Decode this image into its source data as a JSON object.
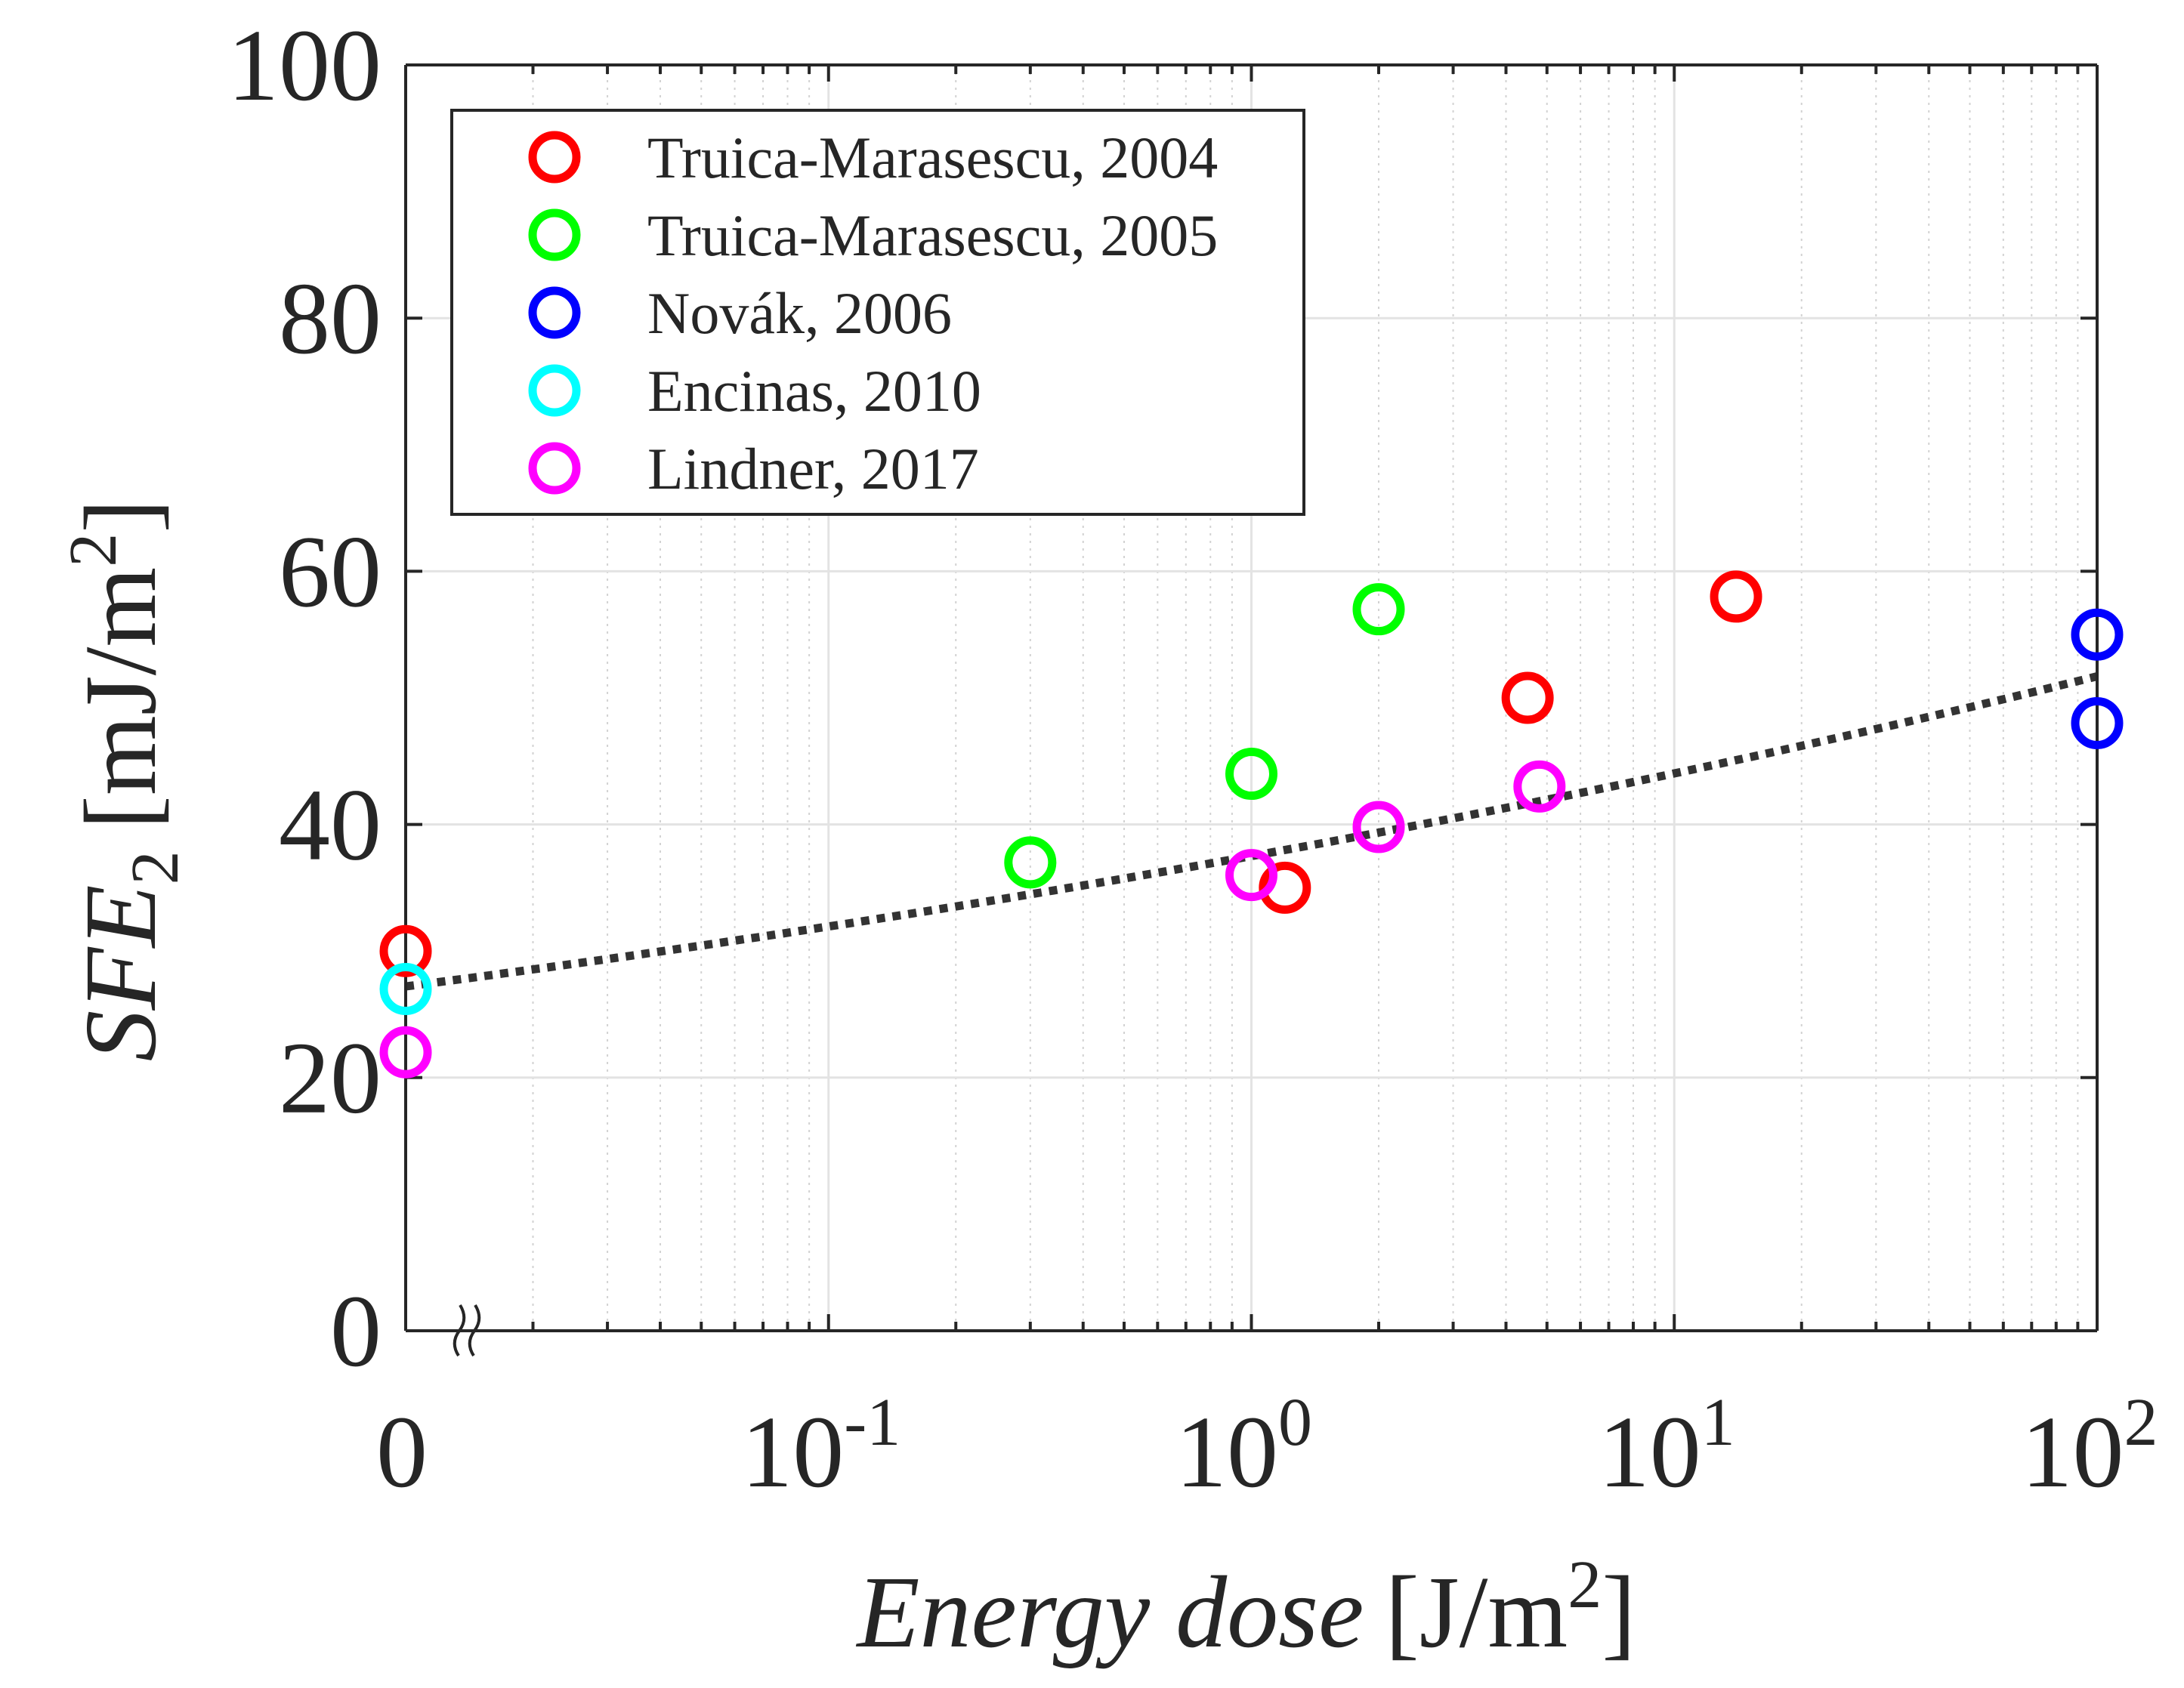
{
  "chart_data": {
    "type": "scatter",
    "xscale": "log",
    "xlim": [
      0.01,
      100
    ],
    "ylim": [
      0,
      100
    ],
    "x_zero_label": "0",
    "x_ticks": [
      {
        "value": 0.1,
        "base": "10",
        "exp": "-1"
      },
      {
        "value": 1,
        "base": "10",
        "exp": "0"
      },
      {
        "value": 10,
        "base": "10",
        "exp": "1"
      },
      {
        "value": 100,
        "base": "10",
        "exp": "2"
      }
    ],
    "y_ticks": [
      "0",
      "20",
      "40",
      "60",
      "80",
      "100"
    ],
    "xlabel": {
      "italic": "Energy dose",
      "unit": "[J/m",
      "sup": "2",
      "close": "]"
    },
    "ylabel": {
      "italic": "SFE",
      "sub": "2",
      "unit": "[mJ/m",
      "sup": "2",
      "close": "]"
    },
    "grid": true,
    "legend_position": "top-left",
    "series": [
      {
        "name": "Truica-Marasescu, 2004",
        "color": "#ff0000",
        "points": [
          {
            "x": 0.01,
            "y": 30
          },
          {
            "x": 1.2,
            "y": 35
          },
          {
            "x": 4.5,
            "y": 50
          },
          {
            "x": 14,
            "y": 58
          }
        ]
      },
      {
        "name": "Truica-Marasescu, 2005",
        "color": "#00ff00",
        "points": [
          {
            "x": 0.3,
            "y": 37
          },
          {
            "x": 1,
            "y": 44
          },
          {
            "x": 2,
            "y": 57
          }
        ]
      },
      {
        "name": "Novák, 2006",
        "color": "#0000ff",
        "points": [
          {
            "x": 100,
            "y": 55
          },
          {
            "x": 100,
            "y": 48
          }
        ]
      },
      {
        "name": "Encinas, 2010",
        "color": "#00ffff",
        "points": [
          {
            "x": 0.01,
            "y": 27
          }
        ]
      },
      {
        "name": "Lindner, 2017",
        "color": "#ff00ff",
        "points": [
          {
            "x": 0.01,
            "y": 22
          },
          {
            "x": 1,
            "y": 36
          },
          {
            "x": 2,
            "y": 39.8
          },
          {
            "x": 4.8,
            "y": 43
          }
        ]
      }
    ],
    "fit_curve": {
      "style": "dotted",
      "color": "#333333",
      "x_start": 0.01,
      "x_end": 100,
      "y_start": 27.2,
      "y_end": 51.7,
      "shape": "power"
    }
  }
}
